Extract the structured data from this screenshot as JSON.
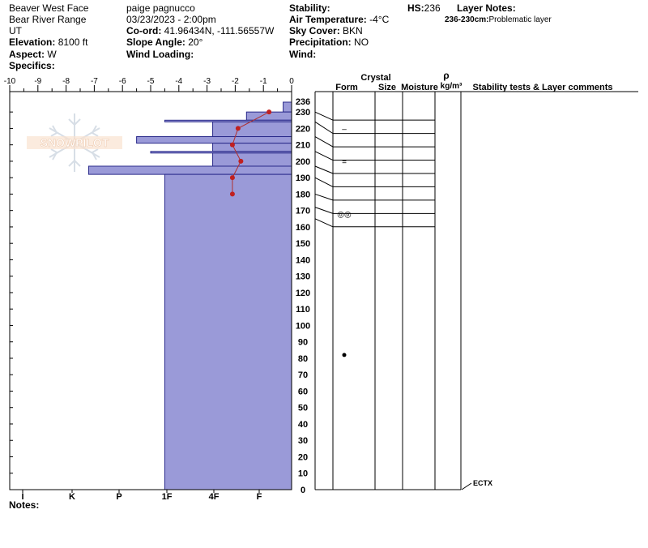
{
  "header": {
    "location": "Beaver West Face",
    "range": "Bear River Range",
    "state": "UT",
    "elevation_label": "Elevation:",
    "elevation": "8100 ft",
    "aspect_label": "Aspect:",
    "aspect": "W",
    "specifics_label": "Specifics:",
    "observer": "paige pagnucco",
    "datetime": "03/23/2023 - 2:00pm",
    "coord_label": "Co-ord:",
    "coord": "41.96434N, -111.56557W",
    "slope_label": "Slope Angle:",
    "slope": "20°",
    "wind_loading_label": "Wind Loading:",
    "stability_label": "Stability:",
    "air_temp_label": "Air Temperature:",
    "air_temp": "-4°C",
    "sky_label": "Sky Cover:",
    "sky": "BKN",
    "precip_label": "Precipitation:",
    "precip": "NO",
    "wind_label": "Wind:",
    "hs_label": "HS:",
    "hs": "236",
    "layer_notes_label": "Layer Notes:",
    "layer_note_range": "236-230cm:",
    "layer_note_text": "Problematic layer"
  },
  "notes_label": "Notes:",
  "watermark": "SNOWPILOT",
  "columns": {
    "crystal": "Crystal",
    "form": "Form",
    "size": "Size",
    "moisture": "Moisture",
    "rho": "ρ",
    "density_unit": "kg/m³",
    "comments": "Stability tests & Layer comments"
  },
  "chart_data": {
    "type": "snow-profile",
    "temp_axis_ticks": [
      "-10",
      "-9",
      "-8",
      "-7",
      "-6",
      "-5",
      "-4",
      "-3",
      "-2",
      "-1",
      "0"
    ],
    "temp_range": [
      -10,
      0
    ],
    "height_range": [
      0,
      236
    ],
    "height_ticks": [
      "236",
      "230",
      "220",
      "210",
      "200",
      "190",
      "180",
      "170",
      "160",
      "150",
      "140",
      "130",
      "120",
      "110",
      "100",
      "90",
      "80",
      "70",
      "60",
      "50",
      "40",
      "30",
      "20",
      "10",
      "0"
    ],
    "hardness_ticks": [
      "I",
      "K",
      "P",
      "1F",
      "4F",
      "F"
    ],
    "temperature_profile": [
      {
        "height": 230,
        "temp": -0.8
      },
      {
        "height": 220,
        "temp": -1.9
      },
      {
        "height": 210,
        "temp": -2.1
      },
      {
        "height": 200,
        "temp": -1.8
      },
      {
        "height": 190,
        "temp": -2.1
      },
      {
        "height": 180,
        "temp": -2.1
      }
    ],
    "hardness_layers": [
      {
        "from": 236,
        "to": 230,
        "temp_equiv": -0.3
      },
      {
        "from": 230,
        "to": 225,
        "temp_equiv": -1.6
      },
      {
        "from": 225,
        "to": 224,
        "temp_equiv": -4.5
      },
      {
        "from": 224,
        "to": 215,
        "temp_equiv": -2.8
      },
      {
        "from": 215,
        "to": 211,
        "temp_equiv": -5.5
      },
      {
        "from": 211,
        "to": 206,
        "temp_equiv": -2.8
      },
      {
        "from": 206,
        "to": 205,
        "temp_equiv": -5.0
      },
      {
        "from": 205,
        "to": 197,
        "temp_equiv": -2.8
      },
      {
        "from": 197,
        "to": 192,
        "temp_equiv": -7.2
      },
      {
        "from": 192,
        "to": 0,
        "temp_equiv": -4.5
      }
    ],
    "layer_boundaries": [
      230,
      224,
      215,
      206,
      197,
      190,
      180,
      172,
      165
    ],
    "layer_symbols": [
      {
        "height": 220,
        "symbol": "–"
      },
      {
        "height": 200,
        "symbol": "="
      },
      {
        "height": 168,
        "symbol": "◎◎"
      }
    ],
    "marker_height": 82,
    "stability_tests": [
      {
        "height": 0,
        "label": "ECTX"
      }
    ]
  }
}
